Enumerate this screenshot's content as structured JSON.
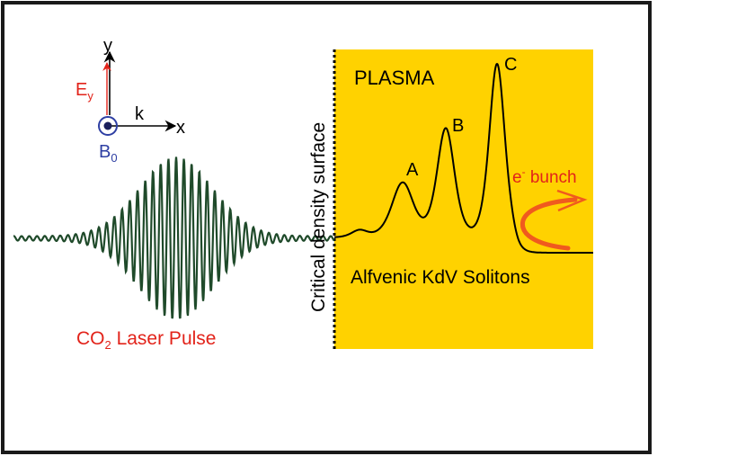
{
  "axes": {
    "y_label": "y",
    "x_label": "x",
    "k_label": "k",
    "e_field": {
      "main": "E",
      "sub": "y"
    },
    "b_field": {
      "main": "B",
      "sub": "0"
    }
  },
  "plasma_label": "PLASMA",
  "surface_label": "Critical density surface",
  "solitons_label": "Alfvenic KdV Solitons",
  "peaks": {
    "a": "A",
    "b": "B",
    "c": "C"
  },
  "electron_bunch": {
    "main": "e",
    "sup": "-",
    "rest": " bunch"
  },
  "laser_label": {
    "pre": "CO",
    "sub": "2",
    "post": " Laser Pulse"
  },
  "colors": {
    "plasma": "#FFD200",
    "wave": "#1F4A2A",
    "red": "#E2231A",
    "blue": "#2E3FA3",
    "arrow_orange": "#F05A1E",
    "frame": "#1A1A1A"
  }
}
